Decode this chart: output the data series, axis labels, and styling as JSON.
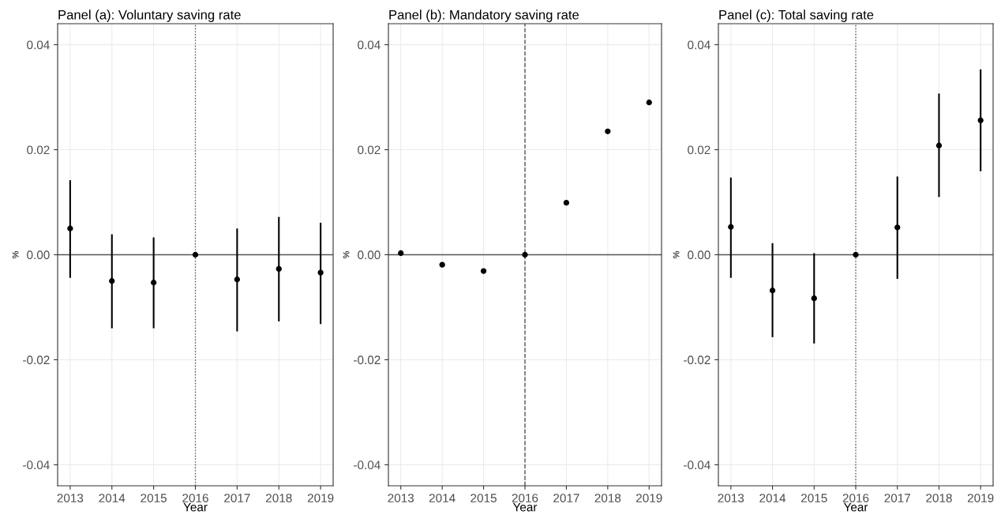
{
  "chart_data": [
    {
      "type": "scatter",
      "title": "Panel (a): Voluntary saving rate",
      "xlabel": "Year",
      "ylabel": "%",
      "categories": [
        "2013",
        "2014",
        "2015",
        "2016",
        "2017",
        "2018",
        "2019"
      ],
      "series": [
        {
          "color": "#000000",
          "values": [
            0.005,
            -0.005,
            -0.0053,
            0,
            -0.0047,
            -0.0027,
            -0.0034
          ],
          "errors": [
            [
              -0.0044,
              0.0142
            ],
            [
              -0.014,
              0.0039
            ],
            [
              -0.014,
              0.0033
            ],
            null,
            [
              -0.0146,
              0.005
            ],
            [
              -0.0127,
              0.0072
            ],
            [
              -0.0132,
              0.0061
            ]
          ]
        }
      ],
      "ylim": [
        -0.044,
        0.044
      ],
      "yticks": [
        {
          "value": -0.04,
          "label": "-0.04"
        },
        {
          "value": -0.02,
          "label": "-0.02"
        },
        {
          "value": 0,
          "label": "0.00"
        },
        {
          "value": 0.02,
          "label": "0.02"
        },
        {
          "value": 0.04,
          "label": "0.04"
        }
      ],
      "ref_lines": [
        {
          "axis": "y",
          "value": 0,
          "color": "#555555",
          "line_style": "solid"
        },
        {
          "axis": "x",
          "value": "2016",
          "color": "#555555",
          "line_style": "dotted"
        }
      ],
      "grid": true,
      "marker": "circle",
      "legend": false
    },
    {
      "type": "scatter",
      "title": "Panel (b): Mandatory saving rate",
      "xlabel": "Year",
      "ylabel": "%",
      "categories": [
        "2013",
        "2014",
        "2015",
        "2016",
        "2017",
        "2018",
        "2019"
      ],
      "series": [
        {
          "color": "#000000",
          "values": [
            0.0003,
            -0.0019,
            -0.0031,
            0,
            0.0099,
            0.0235,
            0.029
          ]
        }
      ],
      "ylim": [
        -0.044,
        0.044
      ],
      "yticks": [
        {
          "value": -0.04,
          "label": "-0.04"
        },
        {
          "value": -0.02,
          "label": "-0.02"
        },
        {
          "value": 0,
          "label": "0.00"
        },
        {
          "value": 0.02,
          "label": "0.02"
        },
        {
          "value": 0.04,
          "label": "0.04"
        }
      ],
      "ref_lines": [
        {
          "axis": "y",
          "value": 0,
          "color": "#555555",
          "line_style": "solid"
        },
        {
          "axis": "x",
          "value": "2016",
          "color": "#555555",
          "line_style": "dashed"
        }
      ],
      "grid": true,
      "marker": "circle",
      "legend": false
    },
    {
      "type": "scatter",
      "title": "Panel (c): Total saving rate",
      "xlabel": "Year",
      "ylabel": "%",
      "categories": [
        "2013",
        "2014",
        "2015",
        "2016",
        "2017",
        "2018",
        "2019"
      ],
      "series": [
        {
          "color": "#000000",
          "values": [
            0.0053,
            -0.0068,
            -0.0083,
            0,
            0.0052,
            0.0208,
            0.0256
          ],
          "errors": [
            [
              -0.0044,
              0.0147
            ],
            [
              -0.0157,
              0.0022
            ],
            [
              -0.0169,
              0.0003
            ],
            null,
            [
              -0.0046,
              0.0149
            ],
            [
              0.011,
              0.0307
            ],
            [
              0.0159,
              0.0353
            ]
          ]
        }
      ],
      "ylim": [
        -0.044,
        0.044
      ],
      "yticks": [
        {
          "value": -0.04,
          "label": "-0.04"
        },
        {
          "value": -0.02,
          "label": "-0.02"
        },
        {
          "value": 0,
          "label": "0.00"
        },
        {
          "value": 0.02,
          "label": "0.02"
        },
        {
          "value": 0.04,
          "label": "0.04"
        }
      ],
      "ref_lines": [
        {
          "axis": "y",
          "value": 0,
          "color": "#555555",
          "line_style": "solid"
        },
        {
          "axis": "x",
          "value": "2016",
          "color": "#555555",
          "line_style": "dotted"
        }
      ],
      "grid": true,
      "marker": "circle",
      "legend": false
    }
  ]
}
